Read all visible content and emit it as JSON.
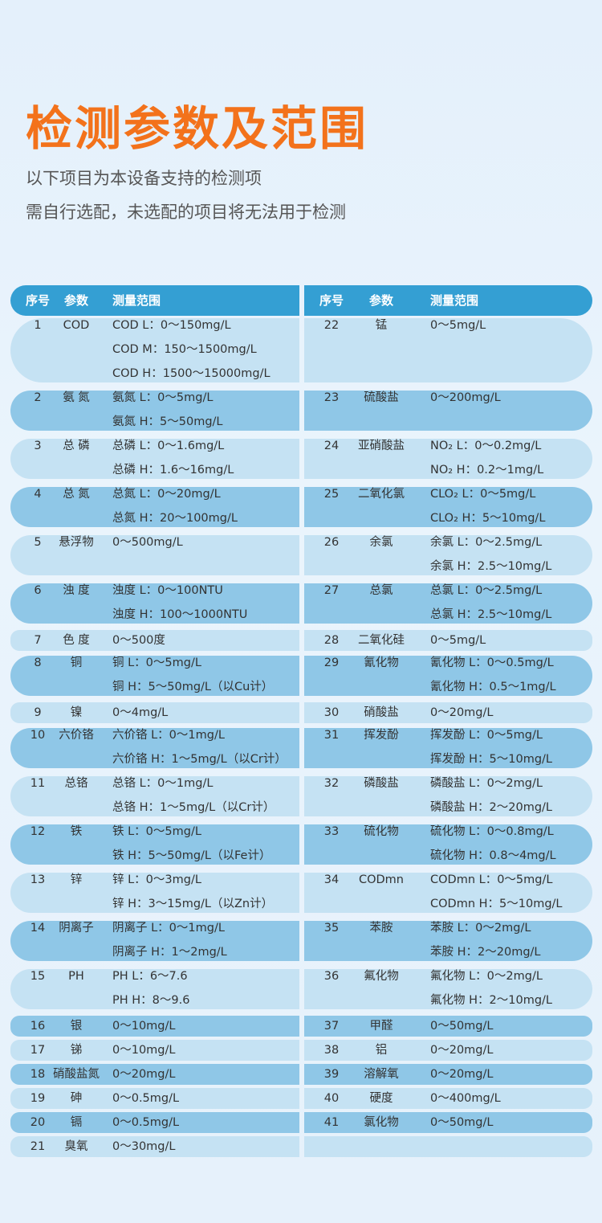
{
  "title": "检测参数及范围",
  "subtitle_lines": [
    "以下项目为本设备支持的检测项",
    "需自行选配，未选配的项目将无法用于检测"
  ],
  "colors": {
    "title": "#f3721b",
    "header": "#349fd3",
    "row_light": "#c5e2f3",
    "row_dark": "#8fc7e7"
  },
  "headers": {
    "no": "序号",
    "param": "参数",
    "range": "测量范围"
  },
  "rows": [
    {
      "left": {
        "no": "1",
        "param": "COD",
        "ranges": [
          "COD L：0～150mg/L",
          "COD M：150～1500mg/L",
          "COD H：1500～15000mg/L"
        ]
      },
      "right": {
        "no": "22",
        "param": "锰",
        "ranges": [
          "0～5mg/L"
        ]
      }
    },
    {
      "left": {
        "no": "2",
        "param": "氨 氮",
        "ranges": [
          "氨氮 L：0～5mg/L",
          "氨氮 H：5～50mg/L"
        ]
      },
      "right": {
        "no": "23",
        "param": "硫酸盐",
        "ranges": [
          "0～200mg/L"
        ]
      }
    },
    {
      "left": {
        "no": "3",
        "param": "总 磷",
        "ranges": [
          "总磷 L：0～1.6mg/L",
          "总磷 H：1.6～16mg/L"
        ]
      },
      "right": {
        "no": "24",
        "param": "亚硝酸盐",
        "ranges": [
          "NO₂ L：0～0.2mg/L",
          "NO₂ H：0.2～1mg/L"
        ]
      }
    },
    {
      "left": {
        "no": "4",
        "param": "总 氮",
        "ranges": [
          "总氮 L：0～20mg/L",
          "总氮 H：20～100mg/L"
        ]
      },
      "right": {
        "no": "25",
        "param": "二氧化氯",
        "ranges": [
          "CLO₂ L：0～5mg/L",
          "CLO₂ H：5～10mg/L"
        ]
      }
    },
    {
      "left": {
        "no": "5",
        "param": "悬浮物",
        "ranges": [
          "0～500mg/L"
        ]
      },
      "right": {
        "no": "26",
        "param": "余氯",
        "ranges": [
          "余氯 L：0～2.5mg/L",
          "余氯 H：2.5～10mg/L"
        ]
      }
    },
    {
      "left": {
        "no": "6",
        "param": "浊 度",
        "ranges": [
          "浊度 L：0～100NTU",
          "浊度 H：100～1000NTU"
        ]
      },
      "right": {
        "no": "27",
        "param": "总氯",
        "ranges": [
          "总氯 L：0～2.5mg/L",
          "总氯 H：2.5～10mg/L"
        ]
      }
    },
    {
      "left": {
        "no": "7",
        "param": "色 度",
        "ranges": [
          "0～500度"
        ]
      },
      "right": {
        "no": "28",
        "param": "二氧化硅",
        "ranges": [
          "0～5mg/L"
        ]
      }
    },
    {
      "left": {
        "no": "8",
        "param": "铜",
        "ranges": [
          "铜 L：0～5mg/L",
          "铜 H：5～50mg/L（以Cu计）"
        ]
      },
      "right": {
        "no": "29",
        "param": "氰化物",
        "ranges": [
          "氰化物 L：0～0.5mg/L",
          "氰化物 H：0.5～1mg/L"
        ]
      }
    },
    {
      "left": {
        "no": "9",
        "param": "镍",
        "ranges": [
          "0～4mg/L"
        ]
      },
      "right": {
        "no": "30",
        "param": "硝酸盐",
        "ranges": [
          "0～20mg/L"
        ]
      }
    },
    {
      "left": {
        "no": "10",
        "param": "六价铬",
        "ranges": [
          "六价铬 L：0～1mg/L",
          "六价铬 H：1～5mg/L（以Cr计）"
        ]
      },
      "right": {
        "no": "31",
        "param": "挥发酚",
        "ranges": [
          "挥发酚 L：0～5mg/L",
          "挥发酚 H：5～10mg/L"
        ]
      }
    },
    {
      "left": {
        "no": "11",
        "param": "总铬",
        "ranges": [
          "总铬 L：0～1mg/L",
          "总铬 H：1～5mg/L（以Cr计）"
        ]
      },
      "right": {
        "no": "32",
        "param": "磷酸盐",
        "ranges": [
          "磷酸盐 L：0～2mg/L",
          "磷酸盐 H：2～20mg/L"
        ]
      }
    },
    {
      "left": {
        "no": "12",
        "param": "铁",
        "ranges": [
          "铁 L：0～5mg/L",
          "铁 H：5～50mg/L（以Fe计）"
        ]
      },
      "right": {
        "no": "33",
        "param": "硫化物",
        "ranges": [
          "硫化物 L：0～0.8mg/L",
          "硫化物 H：0.8～4mg/L"
        ]
      }
    },
    {
      "left": {
        "no": "13",
        "param": "锌",
        "ranges": [
          "锌 L：0～3mg/L",
          "锌 H：3～15mg/L（以Zn计）"
        ]
      },
      "right": {
        "no": "34",
        "param": "CODmn",
        "ranges": [
          "CODmn L：0～5mg/L",
          "CODmn H：5～10mg/L"
        ]
      }
    },
    {
      "left": {
        "no": "14",
        "param": "阴离子",
        "ranges": [
          "阴离子 L：0～1mg/L",
          "阴离子 H：1～2mg/L"
        ]
      },
      "right": {
        "no": "35",
        "param": "苯胺",
        "ranges": [
          "苯胺 L：0～2mg/L",
          "苯胺 H：2～20mg/L"
        ]
      }
    },
    {
      "left": {
        "no": "15",
        "param": "PH",
        "ranges": [
          "PH L：6～7.6",
          "PH H：8～9.6"
        ]
      },
      "right": {
        "no": "36",
        "param": "氟化物",
        "ranges": [
          "氟化物 L：0～2mg/L",
          "氟化物 H：2～10mg/L"
        ]
      }
    },
    {
      "left": {
        "no": "16",
        "param": "银",
        "ranges": [
          "0～10mg/L"
        ]
      },
      "right": {
        "no": "37",
        "param": "甲醛",
        "ranges": [
          "0～50mg/L"
        ]
      }
    },
    {
      "left": {
        "no": "17",
        "param": "锑",
        "ranges": [
          "0～10mg/L"
        ]
      },
      "right": {
        "no": "38",
        "param": "铝",
        "ranges": [
          "0～20mg/L"
        ]
      }
    },
    {
      "left": {
        "no": "18",
        "param": "硝酸盐氮",
        "ranges": [
          "0～20mg/L"
        ]
      },
      "right": {
        "no": "39",
        "param": "溶解氧",
        "ranges": [
          "0～20mg/L"
        ]
      }
    },
    {
      "left": {
        "no": "19",
        "param": "砷",
        "ranges": [
          "0～0.5mg/L"
        ]
      },
      "right": {
        "no": "40",
        "param": "硬度",
        "ranges": [
          "0～400mg/L"
        ]
      }
    },
    {
      "left": {
        "no": "20",
        "param": "镉",
        "ranges": [
          "0～0.5mg/L"
        ]
      },
      "right": {
        "no": "41",
        "param": "氯化物",
        "ranges": [
          "0～50mg/L"
        ]
      }
    },
    {
      "left": {
        "no": "21",
        "param": "臭氧",
        "ranges": [
          "0～30mg/L"
        ]
      },
      "right": null
    }
  ]
}
